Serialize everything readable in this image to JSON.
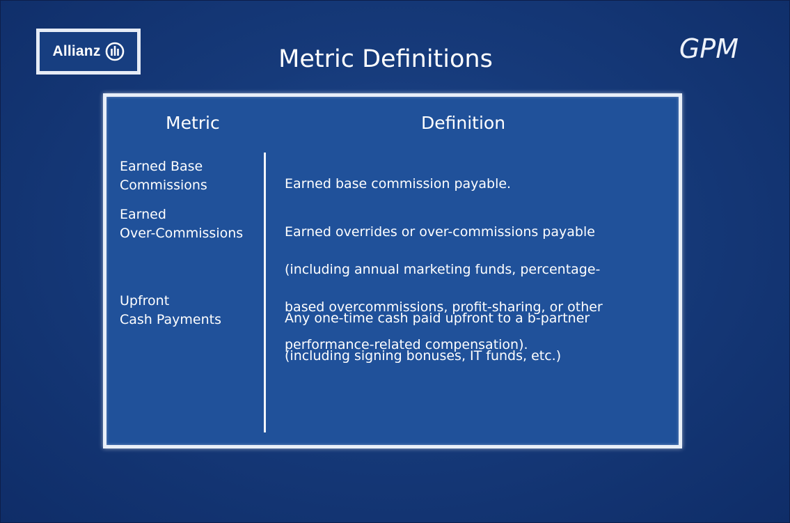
{
  "logo": {
    "text": "Allianz",
    "mark_icon": "allianz-eagle-pillars-icon"
  },
  "slide": {
    "title": "Metric Definitions",
    "brand_tag": "GPM"
  },
  "table": {
    "header_metric": "Metric",
    "header_definition": "Definition",
    "rows": [
      {
        "metric_lines": [
          "Earned Base",
          "Commissions"
        ],
        "definition_lines": [
          "Earned base commission payable."
        ]
      },
      {
        "metric_lines": [
          "Earned",
          "Over-Commissions"
        ],
        "definition_lines": [
          "Earned overrides or over-commissions payable",
          "(including annual marketing funds, percentage-",
          "based overcommissions, profit-sharing, or other",
          "performance-related compensation)."
        ]
      },
      {
        "metric_lines": [
          "Upfront",
          "Cash Payments"
        ],
        "definition_lines": [
          "Any one-time cash paid upfront to a b-partner",
          "(including signing bonuses, IT funds, etc.)"
        ]
      }
    ]
  },
  "colors": {
    "background": "#163a7a",
    "panel": "#20519a",
    "panel_border": "#e9eff8",
    "text": "#ffffff"
  }
}
